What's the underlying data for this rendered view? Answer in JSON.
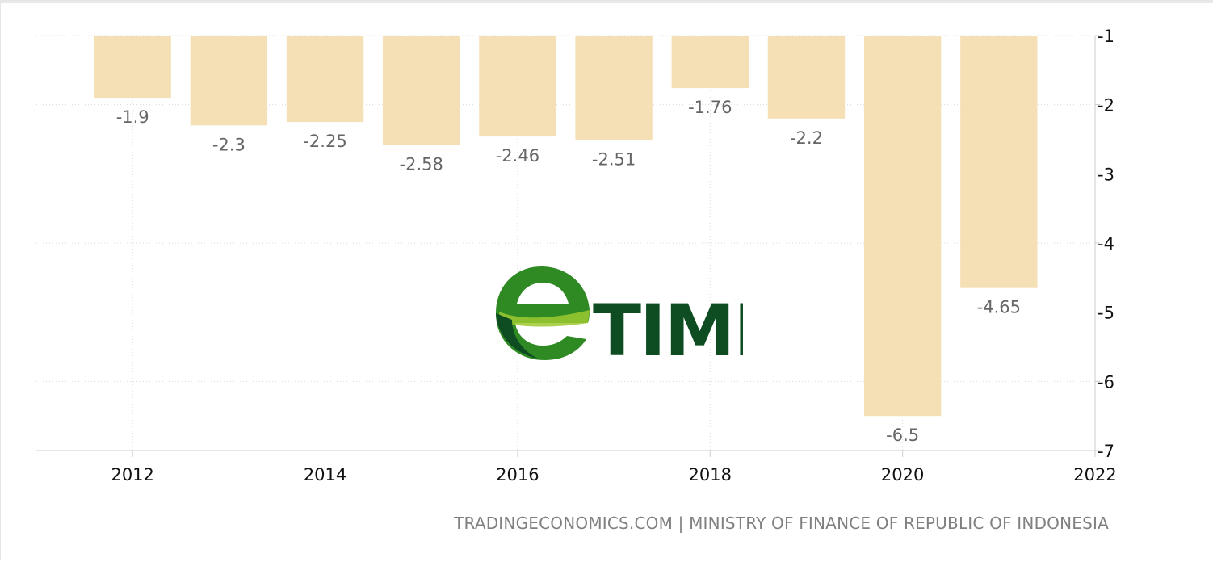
{
  "chart_data": {
    "type": "bar",
    "title": "",
    "xlabel": "",
    "ylabel": "",
    "categories": [
      "2012",
      "2013",
      "2014",
      "2015",
      "2016",
      "2017",
      "2018",
      "2019",
      "2020",
      "2021"
    ],
    "values": [
      -1.9,
      -2.3,
      -2.25,
      -2.58,
      -2.46,
      -2.51,
      -1.76,
      -2.2,
      -6.5,
      -4.65
    ],
    "data_labels": [
      "-1.9",
      "-2.3",
      "-2.25",
      "-2.58",
      "-2.46",
      "-2.51",
      "-1.76",
      "-2.2",
      "-6.5",
      "-4.65"
    ],
    "x_ticks": [
      "2012",
      "2014",
      "2016",
      "2018",
      "2020",
      "2022"
    ],
    "x_tick_values": [
      2012,
      2014,
      2016,
      2018,
      2020,
      2022
    ],
    "y_ticks": [
      "-1",
      "-2",
      "-3",
      "-4",
      "-5",
      "-6",
      "-7"
    ],
    "y_tick_values": [
      -1,
      -2,
      -3,
      -4,
      -5,
      -6,
      -7
    ],
    "ylim": [
      -7,
      -1
    ],
    "xlim": [
      2011,
      2022
    ],
    "bar_baseline": -1,
    "y_axis_position": "right",
    "grid": true,
    "bar_color": "#f5dfb5",
    "grid_color": "#d9d9d9"
  },
  "source": "TRADINGECONOMICS.COM | MINISTRY OF FINANCE OF REPUBLIC OF INDONESIA",
  "watermark": {
    "text": "TIME",
    "icon": "etime-e-logo-icon",
    "colors": {
      "dark": "#0e4d22",
      "mid": "#3b9a2b",
      "light": "#b8d432"
    }
  }
}
